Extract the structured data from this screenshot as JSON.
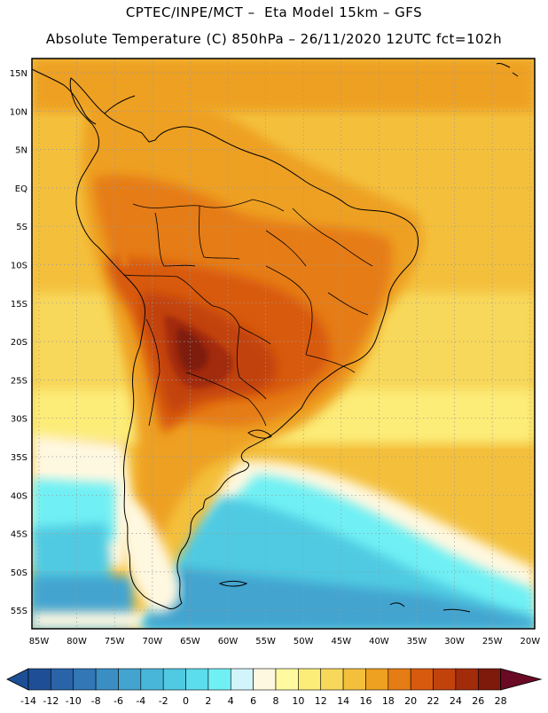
{
  "header": {
    "line1": "CPTEC/INPE/MCT –  Eta Model 15km – GFS",
    "line2": "Absolute Temperature (C) 850hPa – 26/11/2020 12UTC fct=102h"
  },
  "map": {
    "lat_labels": [
      "15N",
      "10N",
      "5N",
      "EQ",
      "5S",
      "10S",
      "15S",
      "20S",
      "25S",
      "30S",
      "35S",
      "40S",
      "45S",
      "50S",
      "55S"
    ],
    "lon_labels": [
      "85W",
      "80W",
      "75W",
      "70W",
      "65W",
      "60W",
      "55W",
      "50W",
      "45W",
      "40W",
      "35W",
      "30W",
      "25W",
      "20W"
    ],
    "grid": "dotted"
  },
  "colorbar": {
    "labels": [
      "-14",
      "-12",
      "-10",
      "-8",
      "-6",
      "-4",
      "-2",
      "0",
      "2",
      "4",
      "6",
      "8",
      "10",
      "12",
      "14",
      "16",
      "18",
      "20",
      "22",
      "24",
      "26",
      "28"
    ],
    "colors": [
      "#1e4f96",
      "#2a64a8",
      "#3277b6",
      "#3a8ec4",
      "#42a4cf",
      "#48b6d8",
      "#4fcae2",
      "#5cdcec",
      "#6ff0f4",
      "#d2f4fb",
      "#fff8e0",
      "#fffaa0",
      "#fcec78",
      "#f8d85a",
      "#f4c03c",
      "#eea020",
      "#e67c14",
      "#d85a0e",
      "#c2420c",
      "#a22c0a",
      "#7e1a0c",
      "#6a0a24"
    ]
  }
}
